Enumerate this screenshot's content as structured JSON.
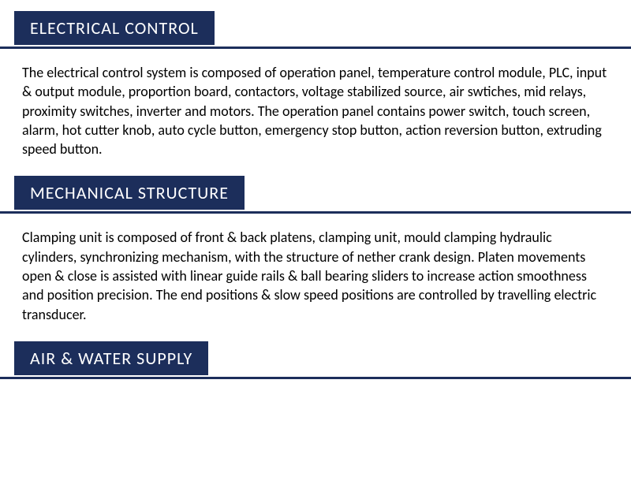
{
  "colors": {
    "header_bg": "#1c2e5b",
    "header_text": "#ffffff",
    "underline": "#1c2e5b",
    "body_text": "#000000",
    "page_bg": "#ffffff"
  },
  "typography": {
    "header_fontsize": 22,
    "body_fontsize": 18,
    "header_letter_spacing": 1,
    "body_line_height": 1.35
  },
  "sections": [
    {
      "title": "ELECTRICAL CONTROL",
      "body": "The electrical control system is composed of operation panel, temperature control module, PLC, input & output module, proportion board, contactors, voltage stabilized source, air swtiches, mid relays, proximity switches, inverter and motors. The operation panel contains power switch, touch screen, alarm, hot cutter knob, auto cycle button, emergency stop button, action reversion button, extruding speed button."
    },
    {
      "title": "MECHANICAL STRUCTURE",
      "body": "Clamping unit is composed of front & back platens, clamping unit, mould clamping hydraulic cylinders, synchronizing mechanism, with the structure of nether crank design. Platen movements open & close is assisted with linear guide rails & ball bearing sliders to increase action smoothness and position precision. The end positions & slow speed positions are controlled by travelling electric transducer."
    },
    {
      "title": "AIR & WATER SUPPLY",
      "body": ""
    }
  ]
}
